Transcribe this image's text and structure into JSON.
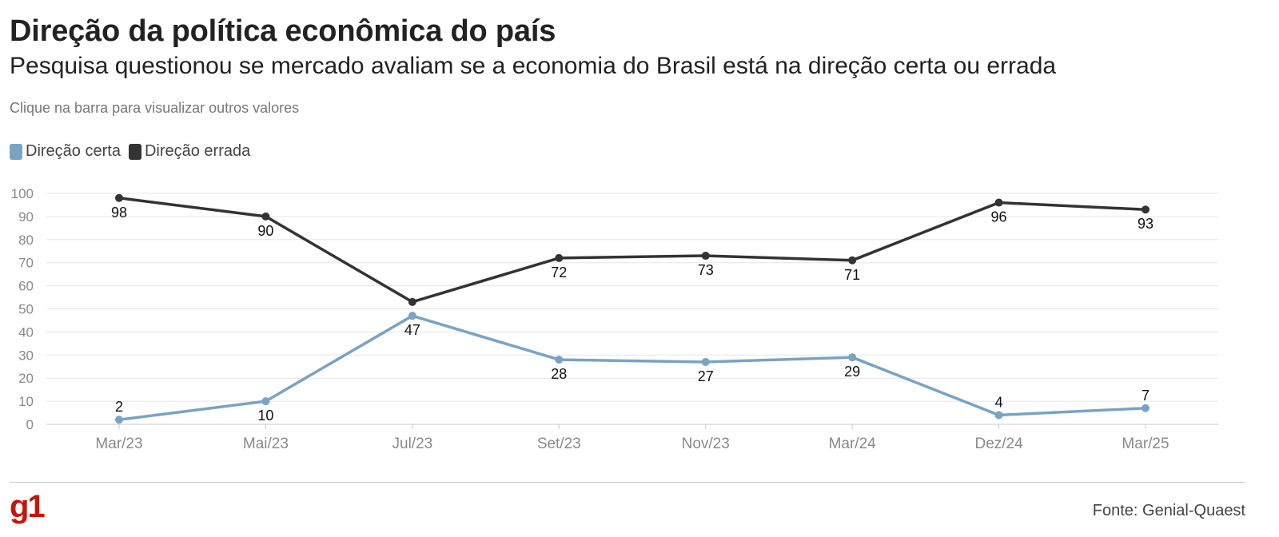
{
  "header": {
    "title": "Direção da política econômica do país",
    "subtitle": "Pesquisa questionou se mercado avaliam se a economia do Brasil está na direção certa ou errada",
    "hint": "Clique na barra para visualizar outros valores"
  },
  "legend": {
    "items": [
      {
        "label": "Direção certa",
        "color": "#79a3c3"
      },
      {
        "label": "Direção errada",
        "color": "#333333"
      }
    ]
  },
  "chart_data": {
    "type": "line",
    "title": "Direção da política econômica do país",
    "subtitle": "Pesquisa questionou se mercado avaliam se a economia do Brasil está na direção certa ou errada",
    "categories": [
      "Mar/23",
      "Mai/23",
      "Jul/23",
      "Set/23",
      "Nov/23",
      "Mar/24",
      "Dez/24",
      "Mar/25"
    ],
    "series": [
      {
        "name": "Direção certa",
        "color": "#79a3c3",
        "values": [
          2,
          10,
          47,
          28,
          27,
          29,
          4,
          7
        ],
        "label_position": [
          "above",
          "below",
          "below",
          "below",
          "below",
          "below",
          "above",
          "above"
        ]
      },
      {
        "name": "Direção errada",
        "color": "#333333",
        "values": [
          98,
          90,
          53,
          72,
          73,
          71,
          96,
          93
        ],
        "label_position": [
          "below",
          "below",
          "none",
          "below",
          "below",
          "below",
          "below",
          "below"
        ]
      }
    ],
    "yticks": [
      0,
      10,
      20,
      30,
      40,
      50,
      60,
      70,
      80,
      90,
      100
    ],
    "ylim": [
      0,
      100
    ],
    "grid": true,
    "legend_placement": "top-left"
  },
  "footer": {
    "logo": "g1",
    "source": "Fonte: Genial-Quaest"
  }
}
